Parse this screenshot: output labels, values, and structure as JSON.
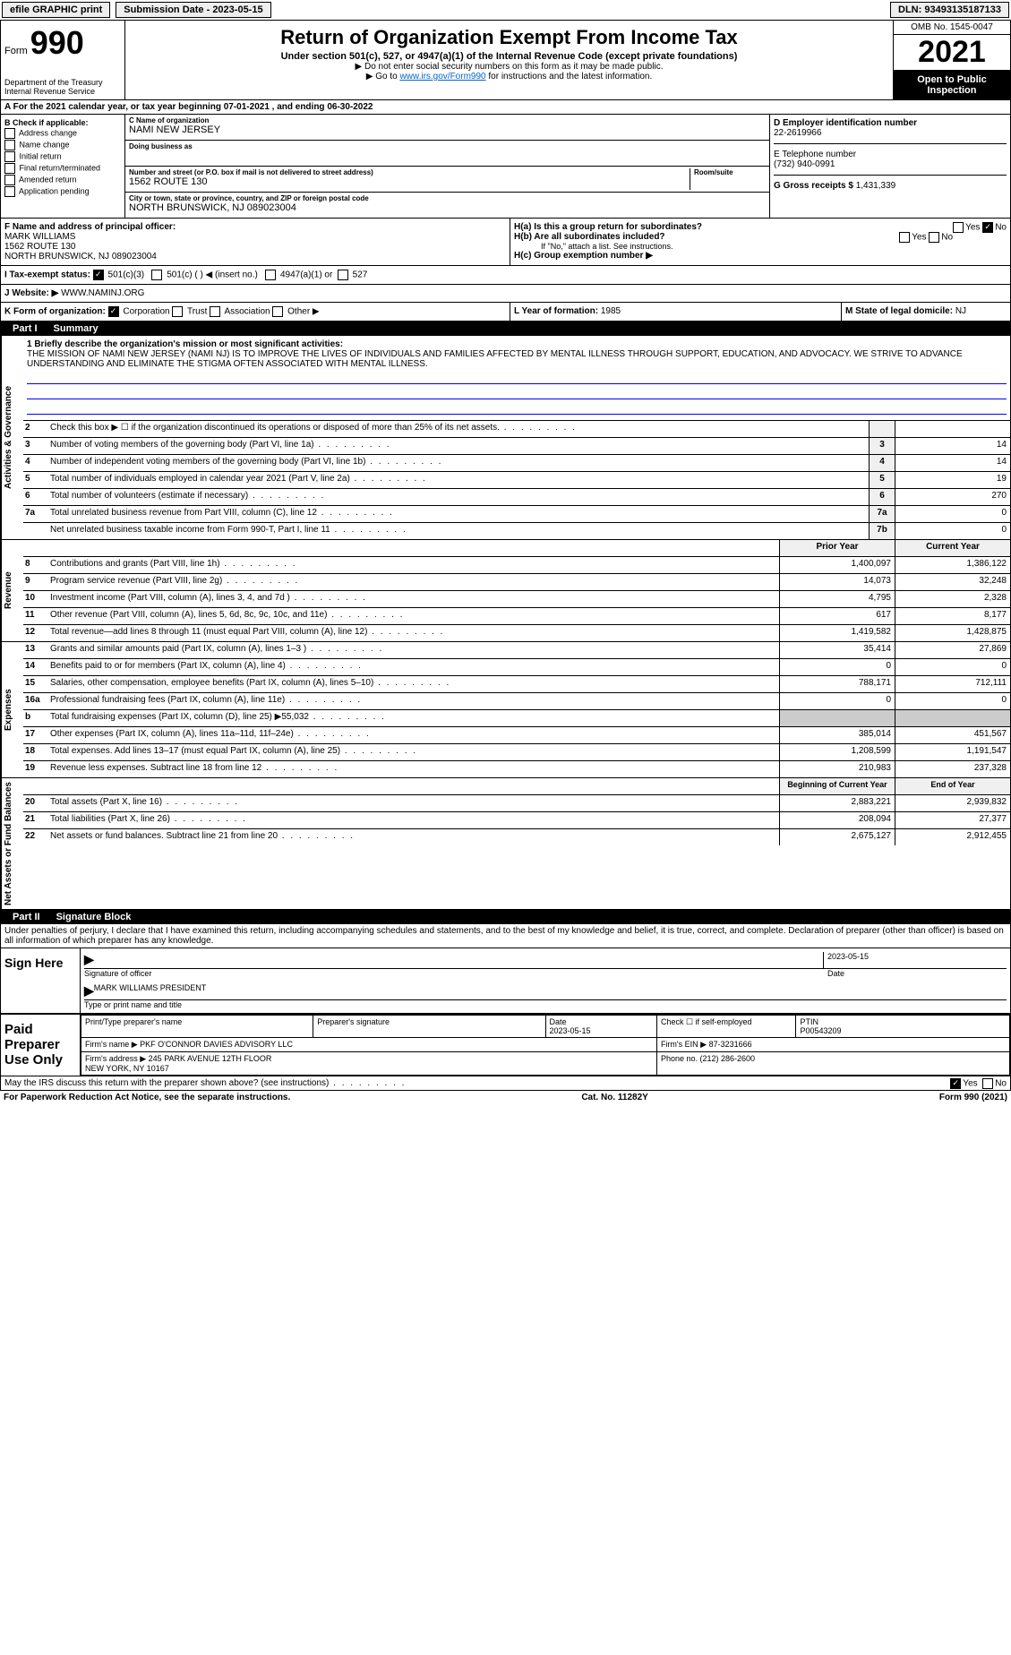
{
  "topbar": {
    "efile": "efile GRAPHIC print",
    "submission_label": "Submission Date - 2023-05-15",
    "dln_label": "DLN: 93493135187133"
  },
  "header": {
    "form_word": "Form",
    "form_number": "990",
    "dept": "Department of the Treasury\nInternal Revenue Service",
    "title": "Return of Organization Exempt From Income Tax",
    "subtitle": "Under section 501(c), 527, or 4947(a)(1) of the Internal Revenue Code (except private foundations)",
    "note1": "▶ Do not enter social security numbers on this form as it may be made public.",
    "note2_pre": "▶ Go to ",
    "note2_link": "www.irs.gov/Form990",
    "note2_post": " for instructions and the latest information.",
    "omb": "OMB No. 1545-0047",
    "year": "2021",
    "open_public": "Open to Public Inspection"
  },
  "period": {
    "line_a": "A For the 2021 calendar year, or tax year beginning 07-01-2021    , and ending 06-30-2022"
  },
  "checks": {
    "b_label": "B Check if applicable:",
    "items": [
      "Address change",
      "Name change",
      "Initial return",
      "Final return/terminated",
      "Amended return",
      "Application pending"
    ]
  },
  "entity": {
    "c_name_label": "C Name of organization",
    "c_name": "NAMI NEW JERSEY",
    "dba_label": "Doing business as",
    "dba": "",
    "street_label": "Number and street (or P.O. box if mail is not delivered to street address)",
    "room_label": "Room/suite",
    "street": "1562 ROUTE 130",
    "city_label": "City or town, state or province, country, and ZIP or foreign postal code",
    "city": "NORTH BRUNSWICK, NJ  089023004",
    "d_ein_label": "D Employer identification number",
    "d_ein": "22-2619966",
    "e_phone_label": "E Telephone number",
    "e_phone": "(732) 940-0991",
    "g_gross_label": "G Gross receipts $",
    "g_gross": "1,431,339"
  },
  "officer": {
    "f_label": "F Name and address of principal officer:",
    "name": "MARK WILLIAMS",
    "addr1": "1562 ROUTE 130",
    "addr2": "NORTH BRUNSWICK, NJ  089023004"
  },
  "group": {
    "ha": "H(a)  Is this a group return for subordinates?",
    "hb": "H(b)  Are all subordinates included?",
    "hb_note": "If \"No,\" attach a list. See instructions.",
    "hc": "H(c)  Group exemption number ▶",
    "yes": "Yes",
    "no": "No"
  },
  "tax_status": {
    "i_label": "I  Tax-exempt status:",
    "c3": "501(c)(3)",
    "c_insert": "501(c) (   ) ◀ (insert no.)",
    "a1": "4947(a)(1) or",
    "s527": "527"
  },
  "website": {
    "j_label": "J Website: ▶",
    "url": "WWW.NAMINJ.ORG"
  },
  "form_org": {
    "k_label": "K Form of organization:",
    "corp": "Corporation",
    "trust": "Trust",
    "assoc": "Association",
    "other": "Other ▶",
    "l_label": "L Year of formation: ",
    "l_val": "1985",
    "m_label": "M State of legal domicile: ",
    "m_val": "NJ"
  },
  "part1": {
    "label": "Part I",
    "title": "Summary"
  },
  "mission": {
    "q1": "1  Briefly describe the organization's mission or most significant activities:",
    "text": "THE MISSION OF NAMI NEW JERSEY (NAMI NJ) IS TO IMPROVE THE LIVES OF INDIVIDUALS AND FAMILIES AFFECTED BY MENTAL ILLNESS THROUGH SUPPORT, EDUCATION, AND ADVOCACY. WE STRIVE TO ADVANCE UNDERSTANDING AND ELIMINATE THE STIGMA OFTEN ASSOCIATED WITH MENTAL ILLNESS."
  },
  "governance_lines": [
    {
      "num": "2",
      "text": "Check this box ▶ ☐ if the organization discontinued its operations or disposed of more than 25% of its net assets.",
      "box": "",
      "val": ""
    },
    {
      "num": "3",
      "text": "Number of voting members of the governing body (Part VI, line 1a)",
      "box": "3",
      "val": "14"
    },
    {
      "num": "4",
      "text": "Number of independent voting members of the governing body (Part VI, line 1b)",
      "box": "4",
      "val": "14"
    },
    {
      "num": "5",
      "text": "Total number of individuals employed in calendar year 2021 (Part V, line 2a)",
      "box": "5",
      "val": "19"
    },
    {
      "num": "6",
      "text": "Total number of volunteers (estimate if necessary)",
      "box": "6",
      "val": "270"
    },
    {
      "num": "7a",
      "text": "Total unrelated business revenue from Part VIII, column (C), line 12",
      "box": "7a",
      "val": "0"
    },
    {
      "num": "",
      "text": "Net unrelated business taxable income from Form 990-T, Part I, line 11",
      "box": "7b",
      "val": "0"
    }
  ],
  "two_col_header": {
    "prior": "Prior Year",
    "current": "Current Year"
  },
  "revenue_lines": [
    {
      "num": "8",
      "text": "Contributions and grants (Part VIII, line 1h)",
      "prior": "1,400,097",
      "current": "1,386,122"
    },
    {
      "num": "9",
      "text": "Program service revenue (Part VIII, line 2g)",
      "prior": "14,073",
      "current": "32,248"
    },
    {
      "num": "10",
      "text": "Investment income (Part VIII, column (A), lines 3, 4, and 7d )",
      "prior": "4,795",
      "current": "2,328"
    },
    {
      "num": "11",
      "text": "Other revenue (Part VIII, column (A), lines 5, 6d, 8c, 9c, 10c, and 11e)",
      "prior": "617",
      "current": "8,177"
    },
    {
      "num": "12",
      "text": "Total revenue—add lines 8 through 11 (must equal Part VIII, column (A), line 12)",
      "prior": "1,419,582",
      "current": "1,428,875"
    }
  ],
  "expense_lines": [
    {
      "num": "13",
      "text": "Grants and similar amounts paid (Part IX, column (A), lines 1–3 )",
      "prior": "35,414",
      "current": "27,869"
    },
    {
      "num": "14",
      "text": "Benefits paid to or for members (Part IX, column (A), line 4)",
      "prior": "0",
      "current": "0"
    },
    {
      "num": "15",
      "text": "Salaries, other compensation, employee benefits (Part IX, column (A), lines 5–10)",
      "prior": "788,171",
      "current": "712,111"
    },
    {
      "num": "16a",
      "text": "Professional fundraising fees (Part IX, column (A), line 11e)",
      "prior": "0",
      "current": "0"
    },
    {
      "num": "b",
      "text": "Total fundraising expenses (Part IX, column (D), line 25) ▶55,032",
      "prior": "shaded",
      "current": "shaded"
    },
    {
      "num": "17",
      "text": "Other expenses (Part IX, column (A), lines 11a–11d, 11f–24e)",
      "prior": "385,014",
      "current": "451,567"
    },
    {
      "num": "18",
      "text": "Total expenses. Add lines 13–17 (must equal Part IX, column (A), line 25)",
      "prior": "1,208,599",
      "current": "1,191,547"
    },
    {
      "num": "19",
      "text": "Revenue less expenses. Subtract line 18 from line 12",
      "prior": "210,983",
      "current": "237,328"
    }
  ],
  "net_assets_header": {
    "prior": "Beginning of Current Year",
    "current": "End of Year"
  },
  "net_assets_lines": [
    {
      "num": "20",
      "text": "Total assets (Part X, line 16)",
      "prior": "2,883,221",
      "current": "2,939,832"
    },
    {
      "num": "21",
      "text": "Total liabilities (Part X, line 26)",
      "prior": "208,094",
      "current": "27,377"
    },
    {
      "num": "22",
      "text": "Net assets or fund balances. Subtract line 21 from line 20",
      "prior": "2,675,127",
      "current": "2,912,455"
    }
  ],
  "part2": {
    "label": "Part II",
    "title": "Signature Block"
  },
  "penalties": "Under penalties of perjury, I declare that I have examined this return, including accompanying schedules and statements, and to the best of my knowledge and belief, it is true, correct, and complete. Declaration of preparer (other than officer) is based on all information of which preparer has any knowledge.",
  "sign": {
    "here": "Sign Here",
    "sig_officer": "Signature of officer",
    "date": "Date",
    "date_val": "2023-05-15",
    "name_title": "MARK WILLIAMS PRESIDENT",
    "type_name": "Type or print name and title"
  },
  "preparer": {
    "label": "Paid Preparer Use Only",
    "print_name_label": "Print/Type preparer's name",
    "print_name": "",
    "sig_label": "Preparer's signature",
    "date_label": "Date",
    "date_val": "2023-05-15",
    "check_self": "Check ☐ if self-employed",
    "ptin_label": "PTIN",
    "ptin": "P00543209",
    "firm_name_label": "Firm's name    ▶",
    "firm_name": "PKF O'CONNOR DAVIES ADVISORY LLC",
    "firm_ein_label": "Firm's EIN ▶",
    "firm_ein": "87-3231666",
    "firm_addr_label": "Firm's address ▶",
    "firm_addr": "245 PARK AVENUE 12TH FLOOR\nNEW YORK, NY  10167",
    "phone_label": "Phone no.",
    "phone": "(212) 286-2600"
  },
  "discuss": {
    "text": "May the IRS discuss this return with the preparer shown above? (see instructions)",
    "yes": "Yes",
    "no": "No"
  },
  "footer": {
    "left": "For Paperwork Reduction Act Notice, see the separate instructions.",
    "mid": "Cat. No. 11282Y",
    "right": "Form 990 (2021)"
  },
  "vert_labels": {
    "gov": "Activities & Governance",
    "rev": "Revenue",
    "exp": "Expenses",
    "net": "Net Assets or Fund Balances"
  }
}
